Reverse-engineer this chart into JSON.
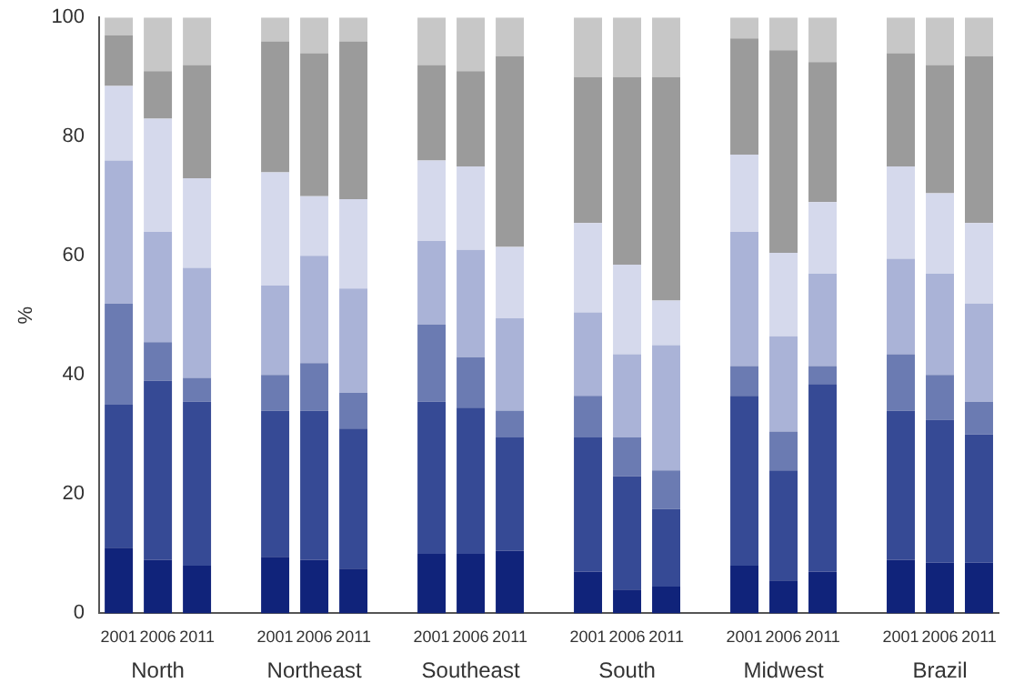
{
  "chart_data": {
    "type": "bar",
    "stacked": true,
    "ylabel": "%",
    "ylim": [
      0,
      100
    ],
    "yticks": [
      0,
      20,
      40,
      60,
      80,
      100
    ],
    "grid": false,
    "legend": false,
    "categories": [
      "2001",
      "2006",
      "2011",
      null,
      "2001",
      "2006",
      "2011",
      null,
      "2001",
      "2006",
      "2011",
      null,
      "2001",
      "2006",
      "2011",
      null,
      "2001",
      "2006",
      "2011",
      null,
      "2001",
      "2006",
      "2011"
    ],
    "annotations": [
      "North",
      "Northeast",
      "Southeast",
      "South",
      "Midwest",
      "Brazil"
    ],
    "series": [
      {
        "color": "#10237a",
        "values": [
          11,
          9,
          8,
          null,
          9.5,
          9,
          7.5,
          null,
          10,
          10,
          10.5,
          null,
          7,
          4,
          4.5,
          null,
          8,
          5.5,
          7,
          null,
          9,
          8.5,
          8.5
        ]
      },
      {
        "color": "#364a95",
        "values": [
          24,
          30,
          27.5,
          null,
          24.5,
          25,
          23.5,
          null,
          25.5,
          24.5,
          19,
          null,
          22.5,
          19,
          13,
          null,
          28.5,
          18.5,
          31.5,
          null,
          25,
          24,
          21.5
        ]
      },
      {
        "color": "#6b7bb2",
        "values": [
          17,
          6.5,
          4,
          null,
          6,
          8,
          6,
          null,
          13,
          8.5,
          4.5,
          null,
          7,
          6.5,
          6.5,
          null,
          5,
          6.5,
          3,
          null,
          9.5,
          7.5,
          5.5
        ]
      },
      {
        "color": "#aab3d7",
        "values": [
          24,
          18.5,
          18.5,
          null,
          15,
          18,
          17.5,
          null,
          14,
          18,
          15.5,
          null,
          14,
          14,
          21,
          null,
          22.5,
          16,
          15.5,
          null,
          16,
          17,
          16.5
        ]
      },
      {
        "color": "#d5d9ec",
        "values": [
          12.5,
          19,
          15,
          null,
          19,
          10,
          15,
          null,
          13.5,
          14,
          12,
          null,
          15,
          15,
          7.5,
          null,
          13,
          14,
          12,
          null,
          15.5,
          13.5,
          13.5
        ]
      },
      {
        "color": "#9b9b9b",
        "values": [
          8.5,
          8,
          19,
          null,
          22,
          24,
          26.5,
          null,
          16,
          16,
          32,
          null,
          24.5,
          31.5,
          37.5,
          null,
          19.5,
          34,
          23.5,
          null,
          19,
          21.5,
          28
        ]
      },
      {
        "color": "#c7c7c7",
        "values": [
          3,
          9,
          8,
          null,
          4,
          6,
          4,
          null,
          8,
          9,
          6.5,
          null,
          10,
          10,
          10,
          null,
          3.5,
          5.5,
          7.5,
          null,
          6,
          8,
          6.5
        ]
      }
    ]
  }
}
